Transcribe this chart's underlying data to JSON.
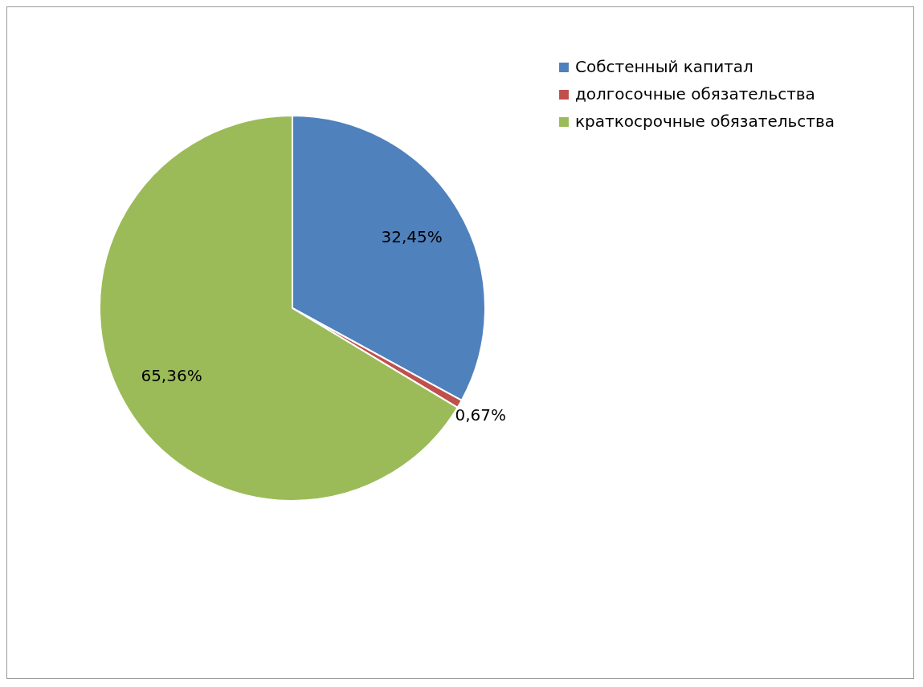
{
  "chart_data": {
    "type": "pie",
    "categories": [
      "Собстенный капитал",
      "долгосочные обязательства",
      "краткосрочные обязательства"
    ],
    "values": [
      32.45,
      0.67,
      65.36
    ],
    "colors": [
      "#4f81bd",
      "#c0504d",
      "#9bbb59"
    ],
    "value_labels": [
      "32,45%",
      "0,67%",
      "65,36%"
    ],
    "legend": "right"
  }
}
